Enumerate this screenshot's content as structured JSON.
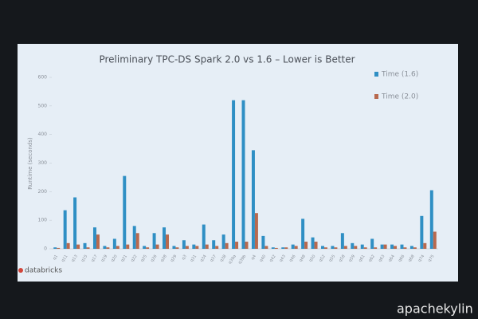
{
  "chart_data": {
    "type": "bar",
    "title": "Preliminary TPC-DS Spark 2.0 vs 1.6 – Lower is Better",
    "y_label": "Runtime (seconds)",
    "categories": [
      "q1",
      "q11",
      "q13",
      "q15",
      "q17",
      "q19",
      "q20",
      "q21",
      "q22",
      "q25",
      "q26",
      "q28",
      "q29",
      "q3",
      "q31",
      "q34",
      "q37",
      "q38",
      "q39a",
      "q39b",
      "q4",
      "q40",
      "q42",
      "q43",
      "q46",
      "q48",
      "q50",
      "q52",
      "q55",
      "q58",
      "q59",
      "q61",
      "q62",
      "q63",
      "q64",
      "q66",
      "q68",
      "q74",
      "q75"
    ],
    "series": [
      {
        "name": "Time (1.6)",
        "color": "#2f8fc4",
        "values": [
          5,
          135,
          180,
          20,
          75,
          10,
          35,
          255,
          80,
          10,
          55,
          75,
          10,
          30,
          15,
          85,
          30,
          50,
          520,
          520,
          345,
          45,
          5,
          5,
          15,
          105,
          40,
          10,
          10,
          55,
          20,
          15,
          35,
          15,
          15,
          15,
          10,
          115,
          205
        ]
      },
      {
        "name": "Time (2.0)",
        "color": "#b8694e",
        "values": [
          3,
          20,
          15,
          5,
          50,
          5,
          10,
          15,
          55,
          5,
          15,
          50,
          5,
          10,
          10,
          15,
          10,
          20,
          25,
          25,
          125,
          10,
          3,
          5,
          10,
          25,
          25,
          5,
          5,
          10,
          10,
          5,
          5,
          15,
          10,
          5,
          5,
          20,
          60
        ]
      }
    ],
    "ylim": [
      0,
      600
    ],
    "yticks": [
      0,
      100,
      200,
      300,
      400,
      500,
      600
    ],
    "legend": "top-right"
  },
  "logo": "databricks",
  "watermark": "apachekylin"
}
